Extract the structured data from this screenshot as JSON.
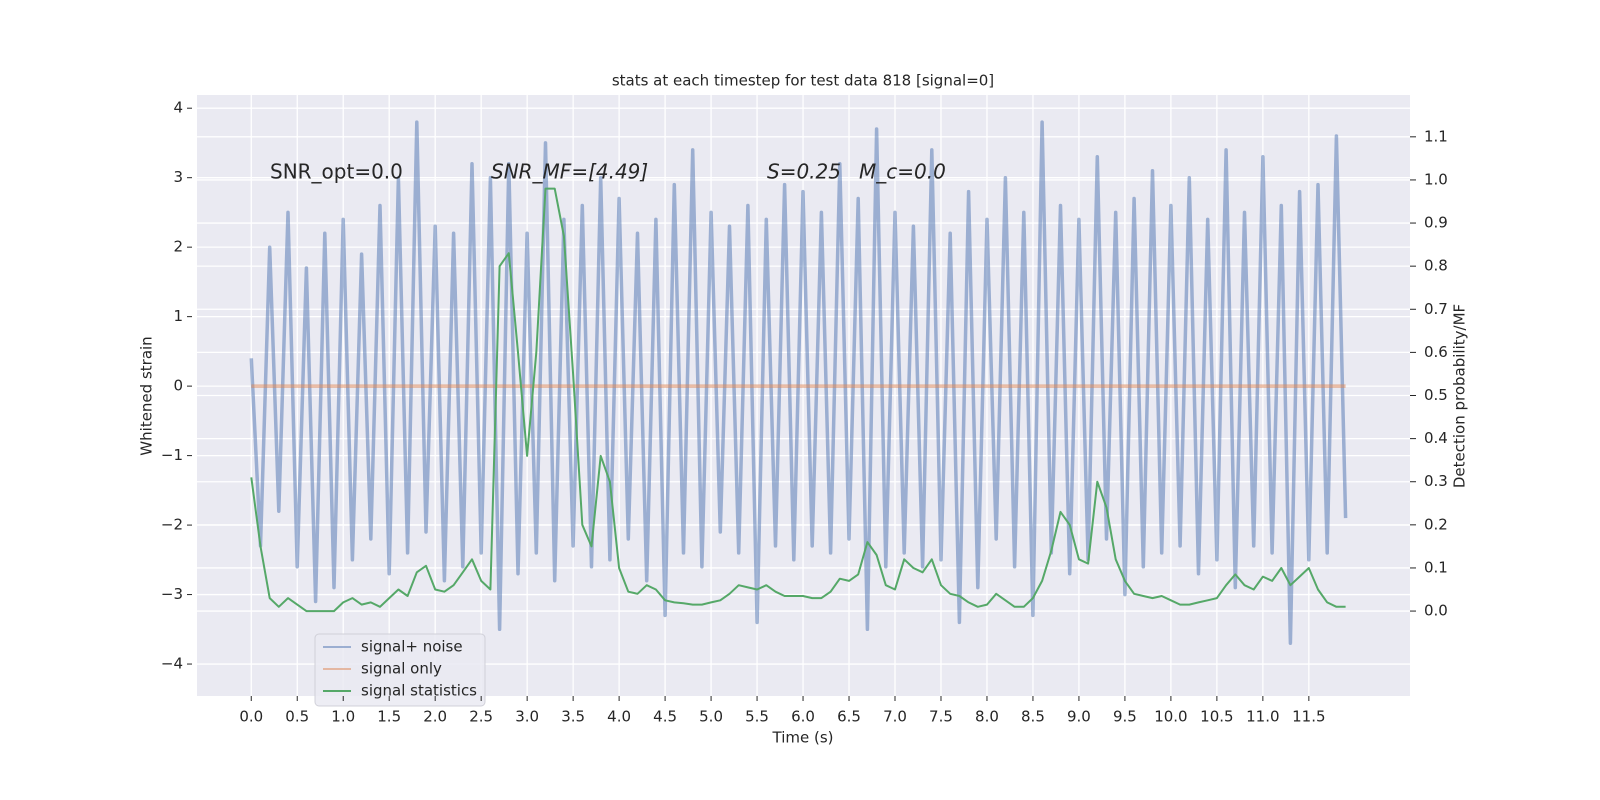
{
  "chart_data": {
    "type": "line",
    "title": "stats at each timestep for test data 818 [signal=0]",
    "xlabel": "Time (s)",
    "ylabel": "Whitened strain",
    "y2label": "Detection probability/MF",
    "annotations": [
      "SNR_opt=0.0",
      "SNR_MF=[4.49]",
      "S=0.25",
      "M_c=0.0"
    ],
    "x": [
      0,
      0.1,
      0.2,
      0.3,
      0.4,
      0.5,
      0.6,
      0.7,
      0.8,
      0.9,
      1,
      1.1,
      1.2,
      1.3,
      1.4,
      1.5,
      1.6,
      1.7,
      1.8,
      1.9,
      2,
      2.1,
      2.2,
      2.3,
      2.4,
      2.5,
      2.6,
      2.7,
      2.8,
      2.9,
      3,
      3.1,
      3.2,
      3.3,
      3.4,
      3.5,
      3.6,
      3.7,
      3.8,
      3.9,
      4,
      4.1,
      4.2,
      4.3,
      4.4,
      4.5,
      4.6,
      4.7,
      4.8,
      4.9,
      5,
      5.1,
      5.2,
      5.3,
      5.4,
      5.5,
      5.6,
      5.7,
      5.8,
      5.9,
      6,
      6.1,
      6.2,
      6.3,
      6.4,
      6.5,
      6.6,
      6.7,
      6.8,
      6.9,
      7,
      7.1,
      7.2,
      7.3,
      7.4,
      7.5,
      7.6,
      7.7,
      7.8,
      7.9,
      8,
      8.1,
      8.2,
      8.3,
      8.4,
      8.5,
      8.6,
      8.7,
      8.8,
      8.9,
      9,
      9.1,
      9.2,
      9.3,
      9.4,
      9.5,
      9.6,
      9.7,
      9.8,
      9.9,
      10,
      10.1,
      10.2,
      10.3,
      10.4,
      10.5,
      10.6,
      10.7,
      10.8,
      10.9,
      11,
      11.1,
      11.2,
      11.3,
      11.4,
      11.5,
      11.6,
      11.7,
      11.8,
      11.9
    ],
    "series": [
      {
        "name": "signal+ noise",
        "color": "#4c72b0",
        "alpha": 0.5,
        "values": [
          0.4,
          -2.3,
          2.0,
          -1.8,
          2.5,
          -2.6,
          1.7,
          -3.1,
          2.2,
          -2.9,
          2.4,
          -2.5,
          1.9,
          -2.2,
          2.6,
          -2.7,
          3.0,
          -2.4,
          3.8,
          -2.1,
          2.3,
          -2.8,
          2.2,
          -2.6,
          3.2,
          -2.4,
          3.0,
          -3.5,
          3.2,
          -2.7,
          2.2,
          -2.4,
          3.5,
          -2.8,
          2.4,
          -2.3,
          2.6,
          -2.6,
          3.0,
          -2.5,
          2.7,
          -2.2,
          2.2,
          -2.8,
          2.4,
          -3.3,
          2.9,
          -2.4,
          3.4,
          -2.6,
          2.5,
          -2.1,
          2.3,
          -2.4,
          2.6,
          -3.4,
          2.4,
          -2.3,
          2.9,
          -2.5,
          2.8,
          -2.3,
          2.5,
          -2.4,
          3.2,
          -2.2,
          2.7,
          -3.5,
          3.7,
          -2.6,
          2.5,
          -2.4,
          2.3,
          -2.6,
          3.4,
          -2.5,
          2.2,
          -3.4,
          2.8,
          -2.9,
          2.4,
          -2.2,
          3.0,
          -2.6,
          2.5,
          -3.3,
          3.8,
          -2.4,
          2.6,
          -2.7,
          2.4,
          -2.5,
          3.3,
          -2.2,
          2.5,
          -3.0,
          2.7,
          -2.6,
          3.1,
          -2.4,
          2.6,
          -2.3,
          3.0,
          -2.7,
          2.4,
          -2.5,
          3.4,
          -2.9,
          2.5,
          -2.3,
          3.3,
          -2.4,
          2.6,
          -3.7,
          2.8,
          -2.5,
          2.9,
          -2.4,
          3.6,
          -1.9
        ]
      },
      {
        "name": "signal only",
        "color": "#dd8452",
        "alpha": 0.5,
        "values": [
          0,
          0,
          0,
          0,
          0,
          0,
          0,
          0,
          0,
          0,
          0,
          0,
          0,
          0,
          0,
          0,
          0,
          0,
          0,
          0,
          0,
          0,
          0,
          0,
          0,
          0,
          0,
          0,
          0,
          0,
          0,
          0,
          0,
          0,
          0,
          0,
          0,
          0,
          0,
          0,
          0,
          0,
          0,
          0,
          0,
          0,
          0,
          0,
          0,
          0,
          0,
          0,
          0,
          0,
          0,
          0,
          0,
          0,
          0,
          0,
          0,
          0,
          0,
          0,
          0,
          0,
          0,
          0,
          0,
          0,
          0,
          0,
          0,
          0,
          0,
          0,
          0,
          0,
          0,
          0,
          0,
          0,
          0,
          0,
          0,
          0,
          0,
          0,
          0,
          0,
          0,
          0,
          0,
          0,
          0,
          0,
          0,
          0,
          0,
          0,
          0,
          0,
          0,
          0,
          0,
          0,
          0,
          0,
          0,
          0,
          0,
          0,
          0,
          0,
          0,
          0,
          0,
          0,
          0,
          0
        ]
      },
      {
        "name": "signal statistics",
        "color": "#55a868",
        "axis": "y2",
        "values": [
          0.31,
          0.15,
          0.03,
          0.01,
          0.03,
          0.015,
          0.0,
          0.0,
          0.0,
          0.0,
          0.02,
          0.03,
          0.015,
          0.02,
          0.01,
          0.03,
          0.05,
          0.035,
          0.09,
          0.105,
          0.05,
          0.045,
          0.06,
          0.09,
          0.12,
          0.07,
          0.05,
          0.8,
          0.83,
          0.6,
          0.36,
          0.6,
          0.98,
          0.98,
          0.87,
          0.55,
          0.2,
          0.15,
          0.36,
          0.3,
          0.1,
          0.045,
          0.04,
          0.06,
          0.05,
          0.025,
          0.02,
          0.018,
          0.015,
          0.015,
          0.02,
          0.025,
          0.04,
          0.06,
          0.055,
          0.05,
          0.06,
          0.045,
          0.035,
          0.035,
          0.035,
          0.03,
          0.03,
          0.045,
          0.075,
          0.07,
          0.085,
          0.16,
          0.13,
          0.06,
          0.05,
          0.12,
          0.1,
          0.09,
          0.12,
          0.06,
          0.04,
          0.035,
          0.02,
          0.01,
          0.015,
          0.04,
          0.025,
          0.01,
          0.01,
          0.03,
          0.07,
          0.14,
          0.23,
          0.2,
          0.12,
          0.11,
          0.3,
          0.24,
          0.12,
          0.07,
          0.04,
          0.035,
          0.03,
          0.035,
          0.025,
          0.015,
          0.015,
          0.02,
          0.025,
          0.03,
          0.06,
          0.085,
          0.06,
          0.05,
          0.08,
          0.07,
          0.1,
          0.06,
          0.08,
          0.1,
          0.05,
          0.02,
          0.01,
          0.01
        ]
      }
    ],
    "xlim": [
      -0.59,
      12.6
    ],
    "ylim": [
      -4.46,
      4.19
    ],
    "y2lim": [
      -0.197,
      1.197
    ],
    "xticks": [
      {
        "value": 0,
        "label": "0.0"
      },
      {
        "value": 0.5,
        "label": "0.5"
      },
      {
        "value": 1,
        "label": "1.0"
      },
      {
        "value": 1.5,
        "label": "1.5"
      },
      {
        "value": 2,
        "label": "2.0"
      },
      {
        "value": 2.5,
        "label": "2.5"
      },
      {
        "value": 3,
        "label": "3.0"
      },
      {
        "value": 3.5,
        "label": "3.5"
      },
      {
        "value": 4,
        "label": "4.0"
      },
      {
        "value": 4.5,
        "label": "4.5"
      },
      {
        "value": 5,
        "label": "5.0"
      },
      {
        "value": 5.5,
        "label": "5.5"
      },
      {
        "value": 6,
        "label": "6.0"
      },
      {
        "value": 6.5,
        "label": "6.5"
      },
      {
        "value": 7,
        "label": "7.0"
      },
      {
        "value": 7.5,
        "label": "7.5"
      },
      {
        "value": 8,
        "label": "8.0"
      },
      {
        "value": 8.5,
        "label": "8.5"
      },
      {
        "value": 9,
        "label": "9.0"
      },
      {
        "value": 9.5,
        "label": "9.5"
      },
      {
        "value": 10,
        "label": "10.0"
      },
      {
        "value": 10.5,
        "label": "10.5"
      },
      {
        "value": 11,
        "label": "11.0"
      },
      {
        "value": 11.5,
        "label": "11.5"
      }
    ],
    "yticks": [
      {
        "value": -4,
        "label": "−4"
      },
      {
        "value": -3,
        "label": "−3"
      },
      {
        "value": -2,
        "label": "−2"
      },
      {
        "value": -1,
        "label": "−1"
      },
      0,
      1,
      2,
      3,
      4
    ],
    "y2ticks": [
      {
        "value": 0,
        "label": "0.0"
      },
      {
        "value": 0.1,
        "label": "0.1"
      },
      {
        "value": 0.2,
        "label": "0.2"
      },
      {
        "value": 0.3,
        "label": "0.3"
      },
      {
        "value": 0.4,
        "label": "0.4"
      },
      {
        "value": 0.5,
        "label": "0.5"
      },
      {
        "value": 0.6,
        "label": "0.6"
      },
      {
        "value": 0.7,
        "label": "0.7"
      },
      {
        "value": 0.8,
        "label": "0.8"
      },
      {
        "value": 0.9,
        "label": "0.9"
      },
      {
        "value": 1,
        "label": "1.0"
      },
      {
        "value": 1.1,
        "label": "1.1"
      }
    ],
    "grid": true,
    "legend": "lower left"
  }
}
